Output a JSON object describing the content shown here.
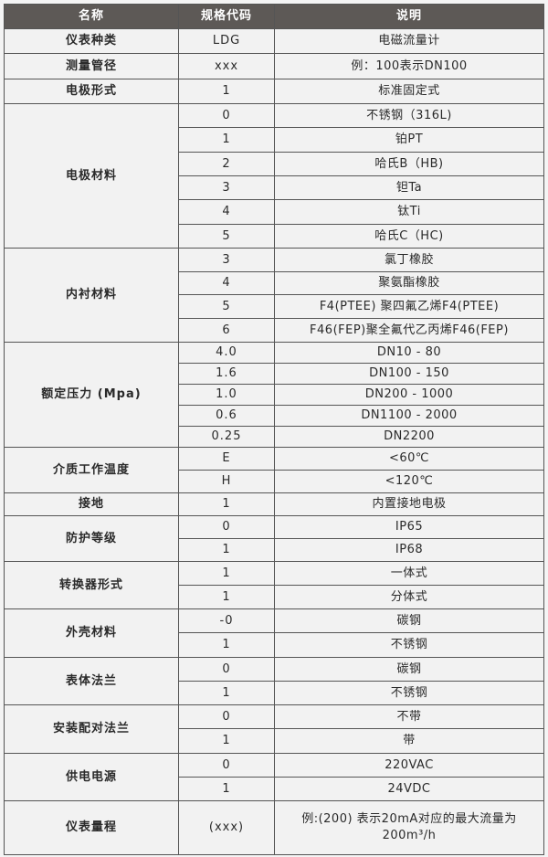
{
  "header": {
    "name": "名称",
    "code": "规格代码",
    "desc": "说明"
  },
  "groups": [
    {
      "name": "仪表种类",
      "rows": [
        {
          "code": "LDG",
          "desc": "电磁流量计"
        }
      ]
    },
    {
      "name": "测量管径",
      "rows": [
        {
          "code": "xxx",
          "desc": "例：100表示DN100"
        }
      ]
    },
    {
      "name": "电极形式",
      "rows": [
        {
          "code": "1",
          "desc": "标准固定式"
        }
      ]
    },
    {
      "name": "电极材料",
      "rows": [
        {
          "code": "0",
          "desc": "不锈钢（316L)"
        },
        {
          "code": "1",
          "desc": "铂PT"
        },
        {
          "code": "2",
          "desc": "哈氏B（HB)"
        },
        {
          "code": "3",
          "desc": "钽Ta"
        },
        {
          "code": "4",
          "desc": "钛Ti"
        },
        {
          "code": "5",
          "desc": "哈氏C（HC)"
        }
      ]
    },
    {
      "name": "内衬材料",
      "rows": [
        {
          "code": "3",
          "desc": "氯丁橡胶"
        },
        {
          "code": "4",
          "desc": "聚氨酯橡胶"
        },
        {
          "code": "5",
          "desc": "F4(PTEE) 聚四氟乙烯F4(PTEE)"
        },
        {
          "code": "6",
          "desc": "F46(FEP)聚全氟代乙丙烯F46(FEP)"
        }
      ]
    },
    {
      "name": "额定压力 (Mpa)",
      "rows": [
        {
          "code": "4.0",
          "desc": "DN10 - 80"
        },
        {
          "code": "1.6",
          "desc": "DN100 - 150"
        },
        {
          "code": "1.0",
          "desc": "DN200 - 1000"
        },
        {
          "code": "0.6",
          "desc": "DN1100 - 2000"
        },
        {
          "code": "0.25",
          "desc": "DN2200"
        }
      ]
    },
    {
      "name": "介质工作温度",
      "rows": [
        {
          "code": "E",
          "desc": "<60℃"
        },
        {
          "code": "H",
          "desc": "<120℃"
        }
      ]
    },
    {
      "name": "接地",
      "rows": [
        {
          "code": "1",
          "desc": "内置接地电极"
        }
      ]
    },
    {
      "name": "防护等级",
      "rows": [
        {
          "code": "0",
          "desc": "IP65"
        },
        {
          "code": "1",
          "desc": "IP68"
        }
      ]
    },
    {
      "name": "转换器形式",
      "rows": [
        {
          "code": "1",
          "desc": "一体式"
        },
        {
          "code": "1",
          "desc": "分体式"
        }
      ]
    },
    {
      "name": "外壳材料",
      "rows": [
        {
          "code": "-0",
          "desc": "碳钢"
        },
        {
          "code": "1",
          "desc": "不锈钢"
        }
      ]
    },
    {
      "name": "表体法兰",
      "rows": [
        {
          "code": "0",
          "desc": "碳钢"
        },
        {
          "code": "1",
          "desc": "不锈钢"
        }
      ]
    },
    {
      "name": "安装配对法兰",
      "rows": [
        {
          "code": "0",
          "desc": "不带"
        },
        {
          "code": "1",
          "desc": "带"
        }
      ]
    },
    {
      "name": "供电电源",
      "rows": [
        {
          "code": "0",
          "desc": "220VAC"
        },
        {
          "code": "1",
          "desc": "24VDC"
        }
      ]
    },
    {
      "name": "仪表量程",
      "rows": [
        {
          "code": "(xxx)",
          "desc": "例:(200) 表示20mA对应的最大流量为200m³/h"
        }
      ]
    }
  ]
}
